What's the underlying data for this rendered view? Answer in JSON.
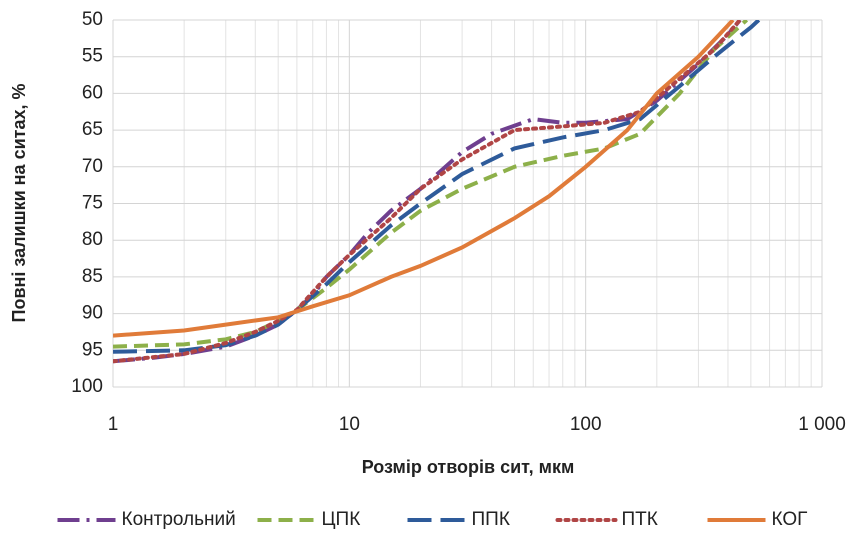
{
  "chart_data": {
    "type": "line",
    "xlabel": "Розмір отворів сит, мкм",
    "ylabel": "Повні залишки на ситах, %",
    "log_x": true,
    "xlim": [
      1,
      1000
    ],
    "xticks": [
      1,
      10,
      100,
      {
        "value": 1000,
        "label": "1 000"
      }
    ],
    "x_minor_ticks": [
      2,
      3,
      4,
      5,
      6,
      7,
      8,
      9,
      20,
      30,
      40,
      50,
      60,
      70,
      80,
      90,
      200,
      300,
      400,
      500,
      600,
      700,
      800,
      900
    ],
    "ylim": [
      100,
      50
    ],
    "yticks": [
      50,
      55,
      60,
      65,
      70,
      75,
      80,
      85,
      90,
      95,
      100
    ],
    "grid": true,
    "legend": "bottom",
    "series": [
      {
        "name": "Контрольний",
        "color": "#6f3f8f",
        "dash": "dash-dot",
        "x": [
          1,
          1.5,
          2,
          3,
          4,
          5,
          6,
          7,
          8,
          10,
          12,
          15,
          20,
          30,
          40,
          60,
          80,
          100,
          150,
          200,
          300,
          400,
          450
        ],
        "values": [
          96.5,
          96,
          95.5,
          94.5,
          93,
          91.5,
          89.5,
          87.5,
          85,
          82,
          79,
          76,
          73,
          68,
          65.5,
          63.5,
          64,
          64,
          63.5,
          61,
          56,
          52,
          50
        ]
      },
      {
        "name": "ЦПК",
        "color": "#8db04a",
        "dash": "dash",
        "x": [
          1,
          2,
          3,
          4,
          5,
          6,
          8,
          10,
          15,
          20,
          30,
          50,
          80,
          120,
          170,
          250,
          350,
          480
        ],
        "values": [
          94.5,
          94.2,
          93.5,
          92.5,
          91,
          89.5,
          86.5,
          84,
          79,
          76,
          73,
          70,
          68.5,
          67.5,
          65.5,
          60,
          54,
          50
        ]
      },
      {
        "name": "ППК",
        "color": "#2e5b9a",
        "dash": "long-dash",
        "x": [
          1,
          2,
          3,
          4,
          5,
          6,
          8,
          10,
          15,
          20,
          30,
          50,
          80,
          120,
          170,
          250,
          350,
          500,
          540
        ],
        "values": [
          95.2,
          95,
          94.3,
          93,
          91.5,
          89.5,
          86,
          83,
          78,
          75,
          71,
          67.5,
          66,
          65,
          63.5,
          59,
          55,
          51,
          50
        ]
      },
      {
        "name": "ПТК",
        "color": "#b04545",
        "dash": "dot",
        "x": [
          1,
          2,
          3,
          4,
          5,
          6,
          8,
          10,
          15,
          20,
          30,
          50,
          80,
          120,
          170,
          250,
          350,
          450
        ],
        "values": [
          96.5,
          95.5,
          94,
          92.5,
          91,
          89.5,
          85,
          82,
          77,
          73,
          69,
          65,
          64.5,
          64,
          62.5,
          58,
          54,
          50
        ]
      },
      {
        "name": "КОГ",
        "color": "#e07b39",
        "dash": "solid",
        "x": [
          1,
          2,
          3,
          5,
          7,
          10,
          15,
          20,
          30,
          50,
          70,
          100,
          150,
          200,
          300,
          420
        ],
        "values": [
          93,
          92.3,
          91.5,
          90.5,
          89,
          87.5,
          85,
          83.5,
          81,
          77,
          74,
          70,
          65,
          60,
          55,
          50
        ]
      }
    ]
  }
}
